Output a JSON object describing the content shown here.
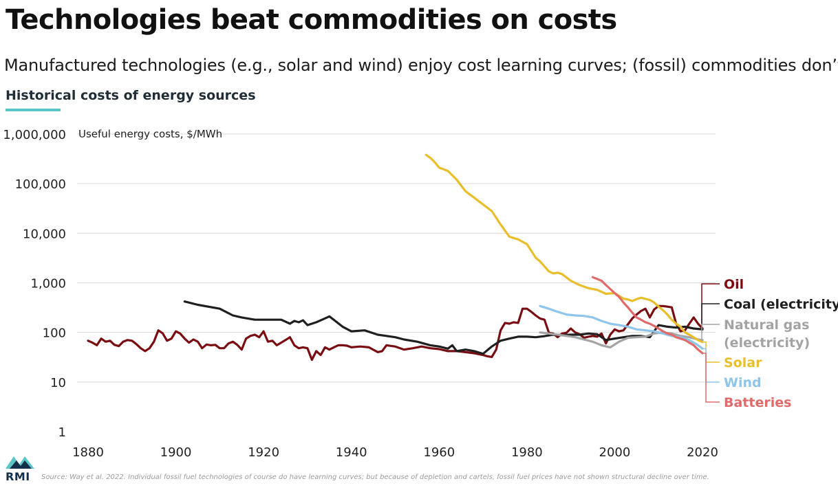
{
  "header": {
    "title": "Technologies beat commodities on costs",
    "subtitle": "Manufactured technologies (e.g., solar and wind) enjoy cost learning curves; (fossil) commodities don’t",
    "chart_heading": "Historical costs of energy sources"
  },
  "footer": {
    "logo_text": "RMI",
    "source": "Source: Way et al. 2022. Individual fossil fuel technologies of course do have learning curves; but because of depletion and cartels, fossil fuel prices have not shown structural decline over time."
  },
  "colors": {
    "accent": "#5bc5c8",
    "oil": "#7a0d12",
    "coal": "#1f1f1f",
    "natural_gas": "#a3a3a3",
    "solar": "#e8bf2a",
    "wind": "#8ec5ea",
    "batteries": "#e06a6a"
  },
  "chart_data": {
    "type": "line",
    "title": "Historical costs of energy sources",
    "ylabel": "Useful energy costs, $/MWh",
    "xlabel": "",
    "y_scale": "log",
    "ylim": [
      1,
      1000000
    ],
    "xlim": [
      1880,
      2020
    ],
    "x_ticks": [
      1880,
      1900,
      1920,
      1940,
      1960,
      1980,
      2000,
      2020
    ],
    "y_ticks": [
      {
        "value": 1000000,
        "label": "1,000,000"
      },
      {
        "value": 100000,
        "label": "100,000"
      },
      {
        "value": 10000,
        "label": "10,000"
      },
      {
        "value": 1000,
        "label": "1,000"
      },
      {
        "value": 100,
        "label": "100"
      },
      {
        "value": 10,
        "label": "10"
      },
      {
        "value": 1,
        "label": "1"
      }
    ],
    "grid": "horizontal",
    "legend": "right, direct labels",
    "series": [
      {
        "key": "oil",
        "name": "Oil",
        "x": [
          1880,
          1881,
          1882,
          1883,
          1884,
          1885,
          1886,
          1887,
          1888,
          1889,
          1890,
          1891,
          1892,
          1893,
          1894,
          1895,
          1896,
          1897,
          1898,
          1899,
          1900,
          1901,
          1902,
          1903,
          1904,
          1905,
          1906,
          1907,
          1908,
          1909,
          1910,
          1911,
          1912,
          1913,
          1914,
          1915,
          1916,
          1917,
          1918,
          1919,
          1920,
          1921,
          1922,
          1923,
          1924,
          1925,
          1926,
          1927,
          1928,
          1929,
          1930,
          1931,
          1932,
          1933,
          1934,
          1935,
          1936,
          1937,
          1938,
          1939,
          1940,
          1942,
          1944,
          1946,
          1947,
          1948,
          1950,
          1952,
          1954,
          1956,
          1958,
          1960,
          1962,
          1964,
          1966,
          1968,
          1970,
          1971,
          1972,
          1973,
          1974,
          1975,
          1976,
          1977,
          1978,
          1979,
          1980,
          1981,
          1982,
          1983,
          1984,
          1985,
          1986,
          1987,
          1988,
          1989,
          1990,
          1991,
          1992,
          1993,
          1994,
          1995,
          1996,
          1997,
          1998,
          1999,
          2000,
          2001,
          2002,
          2003,
          2004,
          2005,
          2006,
          2007,
          2008,
          2009,
          2010,
          2011,
          2012,
          2013,
          2014,
          2015,
          2016,
          2017,
          2018,
          2019,
          2020
        ],
        "y": [
          68,
          62,
          55,
          75,
          65,
          68,
          56,
          53,
          65,
          70,
          68,
          58,
          48,
          42,
          48,
          65,
          110,
          96,
          68,
          75,
          105,
          95,
          75,
          62,
          72,
          65,
          48,
          57,
          55,
          56,
          48,
          48,
          60,
          65,
          56,
          45,
          75,
          85,
          90,
          80,
          105,
          65,
          68,
          55,
          62,
          70,
          80,
          55,
          48,
          50,
          48,
          28,
          42,
          35,
          50,
          45,
          50,
          55,
          55,
          54,
          50,
          52,
          50,
          40,
          42,
          55,
          52,
          45,
          48,
          52,
          48,
          46,
          42,
          42,
          40,
          38,
          35,
          33,
          32,
          45,
          110,
          155,
          150,
          160,
          155,
          300,
          300,
          260,
          220,
          190,
          180,
          98,
          95,
          80,
          95,
          98,
          120,
          100,
          92,
          78,
          82,
          85,
          82,
          95,
          60,
          90,
          115,
          105,
          110,
          145,
          190,
          230,
          270,
          300,
          200,
          290,
          340,
          340,
          330,
          320,
          150,
          105,
          110,
          150,
          200,
          150,
          120
        ]
      },
      {
        "key": "coal",
        "name": "Coal (electricity)",
        "x": [
          1902,
          1905,
          1910,
          1913,
          1915,
          1918,
          1920,
          1922,
          1924,
          1926,
          1927,
          1928,
          1929,
          1930,
          1932,
          1935,
          1938,
          1940,
          1943,
          1946,
          1948,
          1950,
          1952,
          1955,
          1958,
          1960,
          1962,
          1963,
          1964,
          1966,
          1968,
          1970,
          1972,
          1974,
          1976,
          1978,
          1980,
          1982,
          1984,
          1986,
          1988,
          1990,
          1992,
          1994,
          1996,
          1998,
          2000,
          2002,
          2004,
          2006,
          2008,
          2010,
          2012,
          2014,
          2016,
          2018,
          2020
        ],
        "y": [
          420,
          360,
          300,
          220,
          200,
          180,
          180,
          180,
          180,
          150,
          170,
          160,
          175,
          140,
          160,
          210,
          130,
          105,
          110,
          90,
          85,
          80,
          72,
          65,
          55,
          52,
          47,
          55,
          42,
          45,
          42,
          37,
          52,
          68,
          75,
          82,
          82,
          80,
          84,
          90,
          88,
          90,
          90,
          95,
          92,
          70,
          75,
          80,
          85,
          85,
          80,
          140,
          130,
          125,
          130,
          120,
          115
        ]
      },
      {
        "key": "natural_gas",
        "name": "Natural gas (electricity)",
        "x": [
          1983,
          1985,
          1987,
          1989,
          1991,
          1993,
          1995,
          1997,
          1999,
          2001,
          2003,
          2005,
          2007,
          2009,
          2011,
          2013,
          2015,
          2017,
          2019,
          2020
        ],
        "y": [
          100,
          95,
          90,
          85,
          80,
          72,
          65,
          55,
          50,
          65,
          78,
          80,
          82,
          95,
          100,
          95,
          85,
          80,
          72,
          70
        ]
      },
      {
        "key": "solar",
        "name": "Solar",
        "x": [
          1957,
          1958,
          1959,
          1960,
          1962,
          1964,
          1966,
          1968,
          1970,
          1972,
          1974,
          1976,
          1978,
          1980,
          1982,
          1983,
          1985,
          1986,
          1987,
          1988,
          1990,
          1992,
          1994,
          1996,
          1998,
          2000,
          2002,
          2003,
          2004,
          2005,
          2006,
          2008,
          2009,
          2010,
          2011,
          2012,
          2013,
          2014,
          2015,
          2016,
          2017,
          2018,
          2019,
          2020
        ],
        "y": [
          380000,
          330000,
          270000,
          210000,
          180000,
          120000,
          70000,
          52000,
          38000,
          28000,
          15000,
          8500,
          7500,
          6000,
          3200,
          2700,
          1700,
          1550,
          1600,
          1500,
          1100,
          900,
          780,
          720,
          600,
          620,
          480,
          460,
          430,
          470,
          500,
          450,
          400,
          330,
          280,
          230,
          180,
          150,
          130,
          100,
          90,
          80,
          70,
          64
        ]
      },
      {
        "key": "wind",
        "name": "Wind",
        "x": [
          1983,
          1985,
          1987,
          1989,
          1991,
          1993,
          1995,
          1997,
          1999,
          2001,
          2003,
          2005,
          2007,
          2009,
          2011,
          2013,
          2015,
          2017,
          2019,
          2020
        ],
        "y": [
          340,
          300,
          260,
          230,
          220,
          215,
          200,
          170,
          150,
          140,
          130,
          115,
          110,
          105,
          95,
          85,
          80,
          70,
          55,
          47
        ]
      },
      {
        "key": "batteries",
        "name": "Batteries",
        "x": [
          1995,
          1997,
          1998,
          1999,
          2000,
          2001,
          2002,
          2003,
          2004,
          2005,
          2006,
          2007,
          2008,
          2009,
          2010,
          2011,
          2012,
          2013,
          2014,
          2015,
          2016,
          2017,
          2018,
          2019,
          2020
        ],
        "y": [
          1300,
          1100,
          900,
          750,
          620,
          520,
          400,
          320,
          250,
          200,
          180,
          160,
          150,
          135,
          120,
          105,
          95,
          90,
          80,
          75,
          70,
          62,
          55,
          45,
          38
        ]
      }
    ]
  }
}
